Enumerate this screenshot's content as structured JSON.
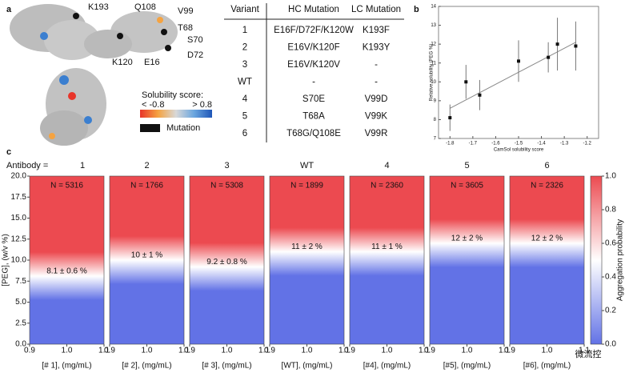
{
  "panel_labels": [
    "a",
    "b",
    "c"
  ],
  "structure": {
    "labels": [
      "K193",
      "Q108",
      "V99",
      "T68",
      "S70",
      "D72",
      "K120",
      "E16"
    ],
    "legend_title": "Solubility score:",
    "legend_low": "< -0.8",
    "legend_high": "> 0.8",
    "mutation": "Mutation"
  },
  "table": {
    "header": [
      "Variant",
      "HC Mutation",
      "LC Mutation"
    ],
    "rows": [
      [
        "1",
        "E16F/D72F/K120W",
        "K193F"
      ],
      [
        "2",
        "E16V/K120F",
        "K193Y"
      ],
      [
        "3",
        "E16V/K120V",
        "-"
      ],
      [
        "WT",
        "-",
        "-"
      ],
      [
        "4",
        "S70E",
        "V99D"
      ],
      [
        "5",
        "T68A",
        "V99K"
      ],
      [
        "6",
        "T68G/Q108E",
        "V99R"
      ]
    ]
  },
  "watermark": "微流控",
  "chart_data": [
    {
      "type": "scatter",
      "x_label": "CamSol solubility score",
      "y_label": "Relative solubility (PEG %)",
      "x": [
        -1.8,
        -1.73,
        -1.67,
        -1.5,
        -1.37,
        -1.33,
        -1.25
      ],
      "values": [
        8.1,
        10,
        9.3,
        11.1,
        11.3,
        12,
        11.9
      ],
      "errors": [
        0.7,
        0.9,
        0.8,
        1.1,
        0.8,
        1.4,
        1.3
      ],
      "fit": {
        "x": [
          -1.8,
          -1.25
        ],
        "values": [
          8.6,
          12.1
        ]
      },
      "xlim": [
        -1.85,
        -1.15
      ],
      "xticks": [
        -1.8,
        -1.7,
        -1.6,
        -1.5,
        -1.4,
        -1.3,
        -1.2
      ],
      "ylim": [
        7,
        14
      ],
      "yticks": [
        7,
        8,
        9,
        10,
        11,
        12,
        13,
        14
      ],
      "color": "#111"
    },
    {
      "type": "heatmap",
      "title_prefix": "Antibody =",
      "categories": [
        "1",
        "2",
        "3",
        "WT",
        "4",
        "5",
        "6"
      ],
      "n_labels": [
        "N = 5316",
        "N = 1766",
        "N = 5308",
        "N = 1899",
        "N = 2360",
        "N = 3605",
        "N = 2326"
      ],
      "values": [
        8.1,
        10,
        9.2,
        11,
        11,
        12,
        12
      ],
      "value_labels": [
        "8.1 ± 0.6 %",
        "10 ± 1 %",
        "9.2 ± 0.8 %",
        "11 ± 2 %",
        "11 ± 1 %",
        "12 ± 2 %",
        "12 ± 2 %"
      ],
      "x_labels": [
        "[# 1], (mg/mL)",
        "[# 2], (mg/mL)",
        "[# 3], (mg/mL)",
        "[WT], (mg/mL)",
        "[#4], (mg/mL)",
        "[#5], (mg/mL)",
        "[#6], (mg/mL)"
      ],
      "y_label": "[PEG], (w/v %)",
      "ylim": [
        0,
        20
      ],
      "yticks": [
        {
          "value": 0,
          "label": "0.0"
        },
        {
          "value": 2.5,
          "label": "2.5"
        },
        {
          "value": 5,
          "label": "5.0"
        },
        {
          "value": 7.5,
          "label": "7.5"
        },
        {
          "value": 10,
          "label": "10.0"
        },
        {
          "value": 12.5,
          "label": "12.5"
        },
        {
          "value": 15,
          "label": "15.0"
        },
        {
          "value": 17.5,
          "label": "17.5"
        },
        {
          "value": 20,
          "label": "20.0"
        }
      ],
      "xlim": [
        0.9,
        1.1
      ],
      "xticks": [
        0.9,
        {
          "value": 1,
          "label": "1.0"
        },
        1.1
      ],
      "colorbar": {
        "label": "Aggregation probability",
        "lim": [
          0,
          1
        ],
        "ticks": [
          {
            "value": 0,
            "label": "0.0"
          },
          0.2,
          0.4,
          0.6,
          0.8,
          {
            "value": 1,
            "label": "1.0"
          }
        ],
        "colors": [
          "#6272e6",
          "#ffffff",
          "#ec4a50"
        ]
      }
    }
  ]
}
